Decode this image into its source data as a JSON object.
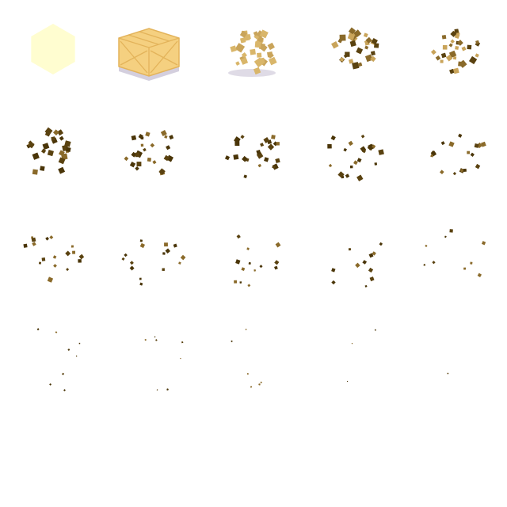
{
  "sprite_sheet": {
    "columns": 5,
    "rows": 5,
    "frame_count": 20,
    "description_frames": [
      {
        "index": 0,
        "kind": "glow-hex",
        "debris": 0
      },
      {
        "index": 1,
        "kind": "crate",
        "debris": 0
      },
      {
        "index": 2,
        "kind": "shatter",
        "debris": 30
      },
      {
        "index": 3,
        "kind": "debris",
        "debris": 30
      },
      {
        "index": 4,
        "kind": "debris",
        "debris": 28
      },
      {
        "index": 5,
        "kind": "debris",
        "debris": 26
      },
      {
        "index": 6,
        "kind": "debris",
        "debris": 24
      },
      {
        "index": 7,
        "kind": "debris",
        "debris": 22
      },
      {
        "index": 8,
        "kind": "debris",
        "debris": 20
      },
      {
        "index": 9,
        "kind": "debris",
        "debris": 18
      },
      {
        "index": 10,
        "kind": "debris",
        "debris": 17
      },
      {
        "index": 11,
        "kind": "debris",
        "debris": 15
      },
      {
        "index": 12,
        "kind": "debris",
        "debris": 13
      },
      {
        "index": 13,
        "kind": "debris",
        "debris": 11
      },
      {
        "index": 14,
        "kind": "debris",
        "debris": 9
      },
      {
        "index": 15,
        "kind": "dust",
        "debris": 8
      },
      {
        "index": 16,
        "kind": "dust",
        "debris": 7
      },
      {
        "index": 17,
        "kind": "dust",
        "debris": 6
      },
      {
        "index": 18,
        "kind": "dust",
        "debris": 3
      },
      {
        "index": 19,
        "kind": "dust",
        "debris": 1
      }
    ],
    "colors": {
      "background": "#ffffff",
      "glow": "#fffdd0",
      "crate_face": "#f5d080",
      "crate_stroke": "#e3b35a",
      "crate_shadow": "#c9c3d6",
      "shatter_light": "#d9b66a",
      "shatter_mid": "#c9a45a",
      "debris_mid": "#8a6a2a",
      "debris_dark": "#5a4210",
      "debris_darkest": "#4a3508"
    }
  }
}
